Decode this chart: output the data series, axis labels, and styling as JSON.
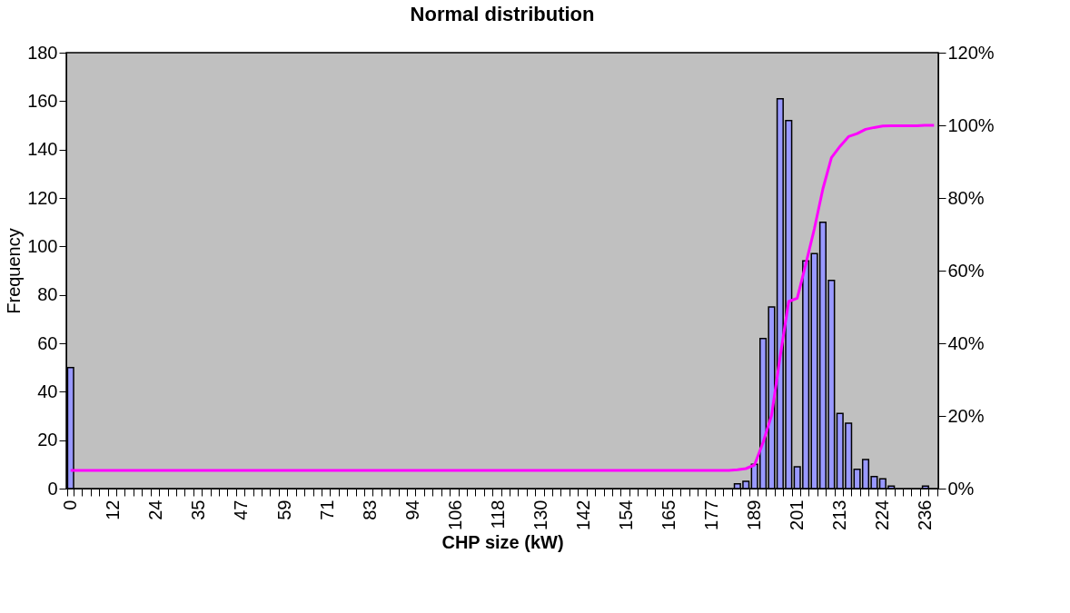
{
  "chart_data": {
    "type": "bar",
    "title": "Normal distribution",
    "xlabel": "CHP size  (kW)",
    "ylabel": "Frequency",
    "categories": [
      "0",
      null,
      null,
      null,
      null,
      "12",
      null,
      null,
      null,
      null,
      "24",
      null,
      null,
      null,
      null,
      "35",
      null,
      null,
      null,
      null,
      "47",
      null,
      null,
      null,
      null,
      "59",
      null,
      null,
      null,
      null,
      "71",
      null,
      null,
      null,
      null,
      "83",
      null,
      null,
      null,
      null,
      "94",
      null,
      null,
      null,
      null,
      "106",
      null,
      null,
      null,
      null,
      "118",
      null,
      null,
      null,
      null,
      "130",
      null,
      null,
      null,
      null,
      "142",
      null,
      null,
      null,
      null,
      "154",
      null,
      null,
      null,
      null,
      "165",
      null,
      null,
      null,
      null,
      "177",
      null,
      null,
      null,
      null,
      "189",
      null,
      null,
      null,
      null,
      "201",
      null,
      null,
      null,
      null,
      "213",
      null,
      null,
      null,
      null,
      "224",
      null,
      null,
      null,
      null,
      "236",
      null
    ],
    "series": [
      {
        "color": "#9999ff",
        "values": [
          50,
          0,
          0,
          0,
          0,
          0,
          0,
          0,
          0,
          0,
          0,
          0,
          0,
          0,
          0,
          0,
          0,
          0,
          0,
          0,
          0,
          0,
          0,
          0,
          0,
          0,
          0,
          0,
          0,
          0,
          0,
          0,
          0,
          0,
          0,
          0,
          0,
          0,
          0,
          0,
          0,
          0,
          0,
          0,
          0,
          0,
          0,
          0,
          0,
          0,
          0,
          0,
          0,
          0,
          0,
          0,
          0,
          0,
          0,
          0,
          0,
          0,
          0,
          0,
          0,
          0,
          0,
          0,
          0,
          0,
          0,
          0,
          0,
          0,
          0,
          0,
          0,
          0,
          2,
          3,
          10,
          62,
          75,
          161,
          152,
          9,
          94,
          97,
          110,
          86,
          31,
          27,
          8,
          12,
          5,
          4,
          1,
          0,
          0,
          0,
          1,
          0
        ]
      },
      {
        "type": "line",
        "axis": "y2",
        "color": "#ff00ff",
        "values": [
          5,
          5,
          5,
          5,
          5,
          5,
          5,
          5,
          5,
          5,
          5,
          5,
          5,
          5,
          5,
          5,
          5,
          5,
          5,
          5,
          5,
          5,
          5,
          5,
          5,
          5,
          5,
          5,
          5,
          5,
          5,
          5,
          5,
          5,
          5,
          5,
          5,
          5,
          5,
          5,
          5,
          5,
          5,
          5,
          5,
          5,
          5,
          5,
          5,
          5,
          5,
          5,
          5,
          5,
          5,
          5,
          5,
          5,
          5,
          5,
          5,
          5,
          5,
          5,
          5,
          5,
          5,
          5,
          5,
          5,
          5,
          5,
          5,
          5,
          5,
          5,
          5,
          5,
          5.2,
          5.5,
          6.5,
          12.7,
          20.2,
          36.3,
          51.5,
          52.4,
          61.8,
          71.5,
          82.5,
          91.1,
          94.2,
          96.9,
          97.7,
          98.9,
          99.4,
          99.8,
          99.9,
          99.9,
          99.9,
          99.9,
          100,
          100
        ]
      }
    ],
    "ylim": [
      0,
      180
    ],
    "yticks": [
      0,
      20,
      40,
      60,
      80,
      100,
      120,
      140,
      160,
      180
    ],
    "y2lim": [
      0,
      120
    ],
    "y2ticks": [
      {
        "value": 0,
        "label": "0%"
      },
      {
        "value": 20,
        "label": "20%"
      },
      {
        "value": 40,
        "label": "40%"
      },
      {
        "value": 60,
        "label": "60%"
      },
      {
        "value": 80,
        "label": "80%"
      },
      {
        "value": 100,
        "label": "100%"
      },
      {
        "value": 120,
        "label": "120%"
      }
    ],
    "grid": false
  }
}
